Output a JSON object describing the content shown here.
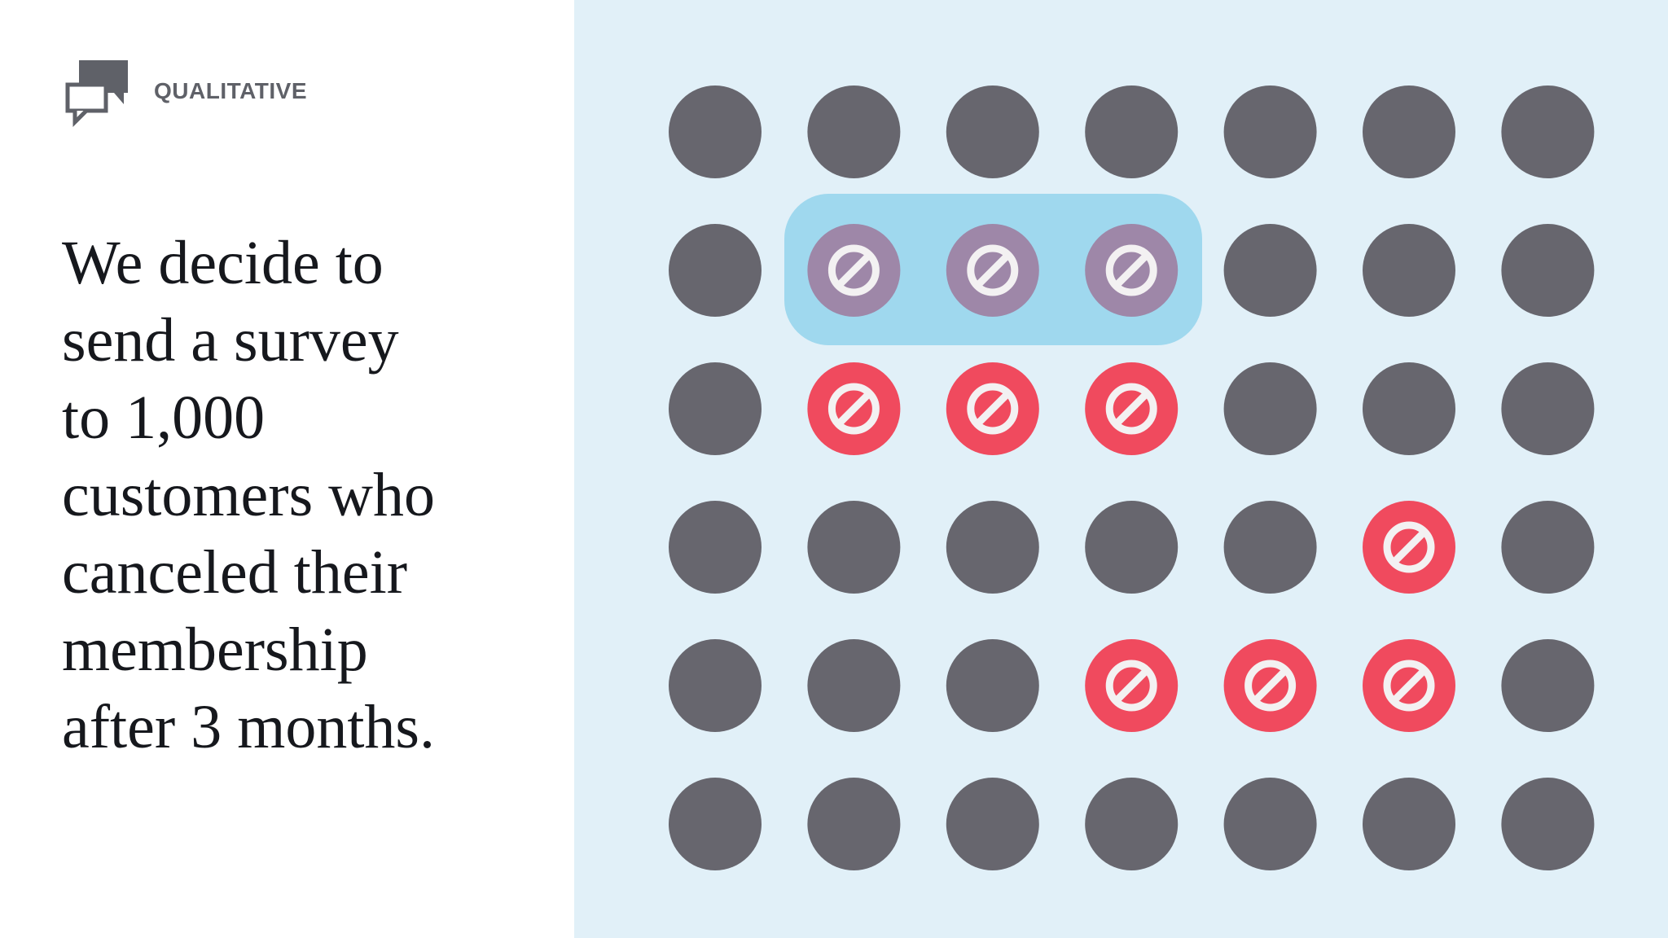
{
  "header": {
    "label": "QUALITATIVE"
  },
  "body": {
    "lines": [
      "We decide to",
      "send a survey",
      "to 1,000",
      "customers who",
      "canceled their",
      "membership",
      "after 3 months."
    ]
  }
}
